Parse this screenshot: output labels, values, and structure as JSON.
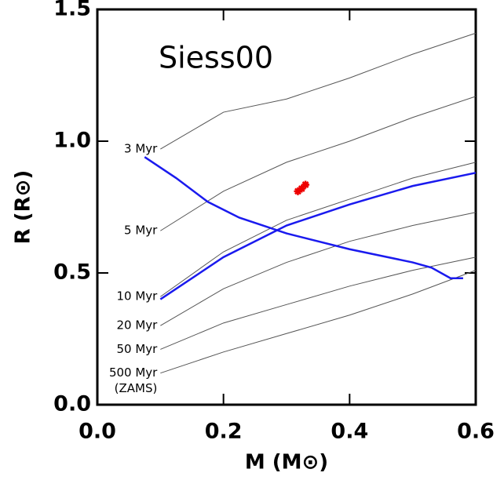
{
  "chart_data": {
    "type": "line",
    "title": "Siess00",
    "x_label": "M (M⊙)",
    "y_label": "R (R⊙)",
    "xlim": [
      0,
      0.6
    ],
    "ylim": [
      0,
      1.5
    ],
    "xticks": [
      {
        "value": 0,
        "label": "0.0"
      },
      0.2,
      0.4,
      0.6
    ],
    "yticks": [
      {
        "value": 0,
        "label": "0.0"
      },
      0.5,
      {
        "value": 1,
        "label": "1.0"
      },
      1.5
    ],
    "series": [
      {
        "name": "3 Myr",
        "color": "#555555",
        "x": [
          0.1,
          0.2,
          0.3,
          0.4,
          0.5,
          0.6
        ],
        "values": [
          0.97,
          1.11,
          1.16,
          1.24,
          1.33,
          1.41
        ]
      },
      {
        "name": "5 Myr",
        "color": "#555555",
        "x": [
          0.1,
          0.2,
          0.3,
          0.4,
          0.5,
          0.6
        ],
        "values": [
          0.66,
          0.81,
          0.92,
          1.0,
          1.09,
          1.17
        ]
      },
      {
        "name": "10 Myr",
        "color": "#555555",
        "x": [
          0.1,
          0.2,
          0.3,
          0.4,
          0.5,
          0.6
        ],
        "values": [
          0.41,
          0.58,
          0.7,
          0.78,
          0.86,
          0.92
        ]
      },
      {
        "name": "20 Myr",
        "color": "#555555",
        "x": [
          0.1,
          0.2,
          0.3,
          0.4,
          0.5,
          0.6
        ],
        "values": [
          0.3,
          0.44,
          0.54,
          0.62,
          0.68,
          0.73
        ]
      },
      {
        "name": "50 Myr",
        "color": "#555555",
        "x": [
          0.1,
          0.2,
          0.3,
          0.4,
          0.5,
          0.6
        ],
        "values": [
          0.21,
          0.31,
          0.38,
          0.45,
          0.51,
          0.56
        ]
      },
      {
        "name": "500 Myr",
        "color": "#555555",
        "x": [
          0.1,
          0.2,
          0.3,
          0.4,
          0.5,
          0.6
        ],
        "values": [
          0.12,
          0.2,
          0.27,
          0.34,
          0.42,
          0.51
        ]
      },
      {
        "color": "#1a1aee",
        "width": 2.5,
        "x": [
          0.1,
          0.2,
          0.3,
          0.4,
          0.5,
          0.6
        ],
        "values": [
          0.4,
          0.56,
          0.68,
          0.76,
          0.83,
          0.88
        ]
      },
      {
        "color": "#1a1aee",
        "width": 2.5,
        "x": [
          0.075,
          0.125,
          0.175,
          0.225,
          0.3,
          0.4,
          0.5,
          0.53,
          0.56,
          0.58
        ],
        "values": [
          0.94,
          0.86,
          0.77,
          0.71,
          0.65,
          0.59,
          0.54,
          0.52,
          0.48,
          0.48
        ]
      },
      {
        "color": "#ee0000",
        "marker": "asterisk",
        "x": [
          0.318,
          0.33,
          0.324
        ],
        "values": [
          0.81,
          0.835,
          0.82
        ]
      }
    ],
    "annotations": [
      "(ZAMS)"
    ]
  }
}
